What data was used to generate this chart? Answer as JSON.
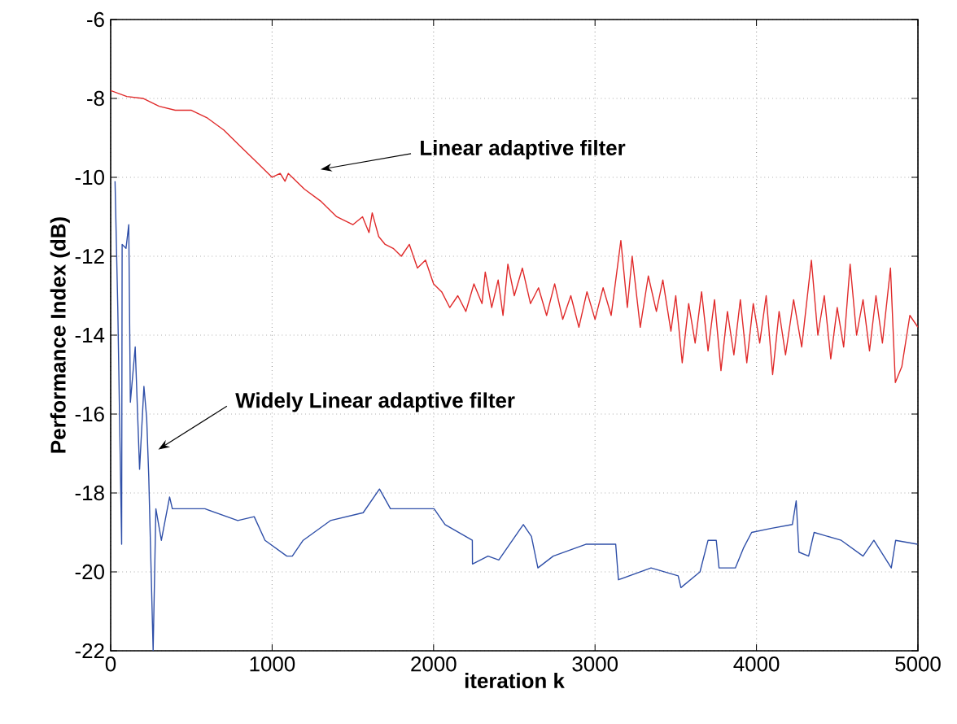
{
  "chart_data": {
    "type": "line",
    "xlabel": "iteration k",
    "ylabel": "Performance Index (dB)",
    "xlim": [
      0,
      5000
    ],
    "ylim": [
      -22,
      -6
    ],
    "xticks": [
      0,
      1000,
      2000,
      3000,
      4000,
      5000
    ],
    "yticks": [
      -22,
      -20,
      -18,
      -16,
      -14,
      -12,
      -10,
      -8,
      -6
    ],
    "grid": true,
    "line_style": "solid",
    "marker": "none",
    "annotations": [
      "Linear adaptive filter",
      "Widely Linear adaptive filter"
    ],
    "series": [
      {
        "color": "#e02a2a",
        "x": [
          0,
          100,
          200,
          300,
          400,
          500,
          600,
          700,
          800,
          900,
          1000,
          1050,
          1080,
          1100,
          1200,
          1300,
          1400,
          1500,
          1560,
          1600,
          1620,
          1660,
          1700,
          1750,
          1800,
          1850,
          1900,
          1950,
          2000,
          2050,
          2100,
          2150,
          2200,
          2250,
          2300,
          2320,
          2360,
          2400,
          2430,
          2460,
          2500,
          2550,
          2600,
          2650,
          2700,
          2750,
          2800,
          2850,
          2900,
          2950,
          3000,
          3050,
          3100,
          3160,
          3200,
          3230,
          3280,
          3330,
          3380,
          3420,
          3470,
          3500,
          3540,
          3580,
          3620,
          3660,
          3700,
          3740,
          3780,
          3820,
          3860,
          3900,
          3940,
          3980,
          4020,
          4060,
          4100,
          4140,
          4180,
          4230,
          4280,
          4340,
          4380,
          4420,
          4460,
          4500,
          4540,
          4580,
          4620,
          4660,
          4700,
          4740,
          4780,
          4830,
          4860,
          4900,
          4950,
          5000
        ],
        "values": [
          -7.8,
          -7.95,
          -8.0,
          -8.2,
          -8.3,
          -8.3,
          -8.5,
          -8.8,
          -9.2,
          -9.6,
          -10.0,
          -9.9,
          -10.1,
          -9.9,
          -10.3,
          -10.6,
          -11.0,
          -11.2,
          -11.0,
          -11.4,
          -10.9,
          -11.5,
          -11.7,
          -11.8,
          -12.0,
          -11.7,
          -12.3,
          -12.1,
          -12.7,
          -12.9,
          -13.3,
          -13.0,
          -13.4,
          -12.7,
          -13.2,
          -12.4,
          -13.3,
          -12.6,
          -13.5,
          -12.2,
          -13.0,
          -12.3,
          -13.2,
          -12.8,
          -13.5,
          -12.7,
          -13.6,
          -13.0,
          -13.8,
          -12.9,
          -13.6,
          -12.8,
          -13.5,
          -11.6,
          -13.3,
          -12.0,
          -13.8,
          -12.5,
          -13.4,
          -12.6,
          -13.9,
          -13.0,
          -14.7,
          -13.2,
          -14.2,
          -12.9,
          -14.4,
          -13.1,
          -14.9,
          -13.4,
          -14.5,
          -13.1,
          -14.7,
          -13.2,
          -14.2,
          -13.0,
          -15.0,
          -13.4,
          -14.5,
          -13.1,
          -14.3,
          -12.1,
          -14.0,
          -13.0,
          -14.6,
          -13.3,
          -14.3,
          -12.2,
          -14.0,
          -13.1,
          -14.4,
          -13.0,
          -14.2,
          -12.3,
          -15.2,
          -14.8,
          -13.5,
          -13.8
        ]
      },
      {
        "color": "#2f4fa8",
        "x": [
          27,
          44,
          68,
          71,
          95,
          112,
          122,
          152,
          179,
          206,
          223,
          236,
          263,
          280,
          314,
          365,
          382,
          584,
          787,
          889,
          956,
          1091,
          1125,
          1192,
          1361,
          1564,
          1665,
          1733,
          2003,
          2071,
          2240,
          2241,
          2337,
          2404,
          2539,
          2556,
          2606,
          2646,
          2741,
          2943,
          3128,
          3145,
          3347,
          3515,
          3532,
          3650,
          3700,
          3751,
          3768,
          3869,
          3919,
          3970,
          4088,
          4222,
          4246,
          4263,
          4323,
          4357,
          4525,
          4660,
          4727,
          4835,
          4862,
          4997
        ],
        "values": [
          -10.1,
          -13.3,
          -19.3,
          -11.7,
          -11.8,
          -11.2,
          -15.7,
          -14.3,
          -17.4,
          -15.3,
          -16.1,
          -17.6,
          -22,
          -18.4,
          -19.2,
          -18.1,
          -18.4,
          -18.4,
          -18.7,
          -18.6,
          -19.2,
          -19.6,
          -19.6,
          -19.2,
          -18.7,
          -18.5,
          -17.9,
          -18.4,
          -18.4,
          -18.8,
          -19.2,
          -19.8,
          -19.6,
          -19.7,
          -18.9,
          -18.8,
          -19.1,
          -19.9,
          -19.6,
          -19.3,
          -19.3,
          -20.2,
          -19.9,
          -20.1,
          -20.4,
          -20.0,
          -19.2,
          -19.2,
          -19.9,
          -19.9,
          -19.4,
          -19.0,
          -18.9,
          -18.8,
          -18.2,
          -19.5,
          -19.6,
          -19.0,
          -19.2,
          -19.6,
          -19.2,
          -19.9,
          -19.2,
          -19.3
        ]
      }
    ]
  }
}
